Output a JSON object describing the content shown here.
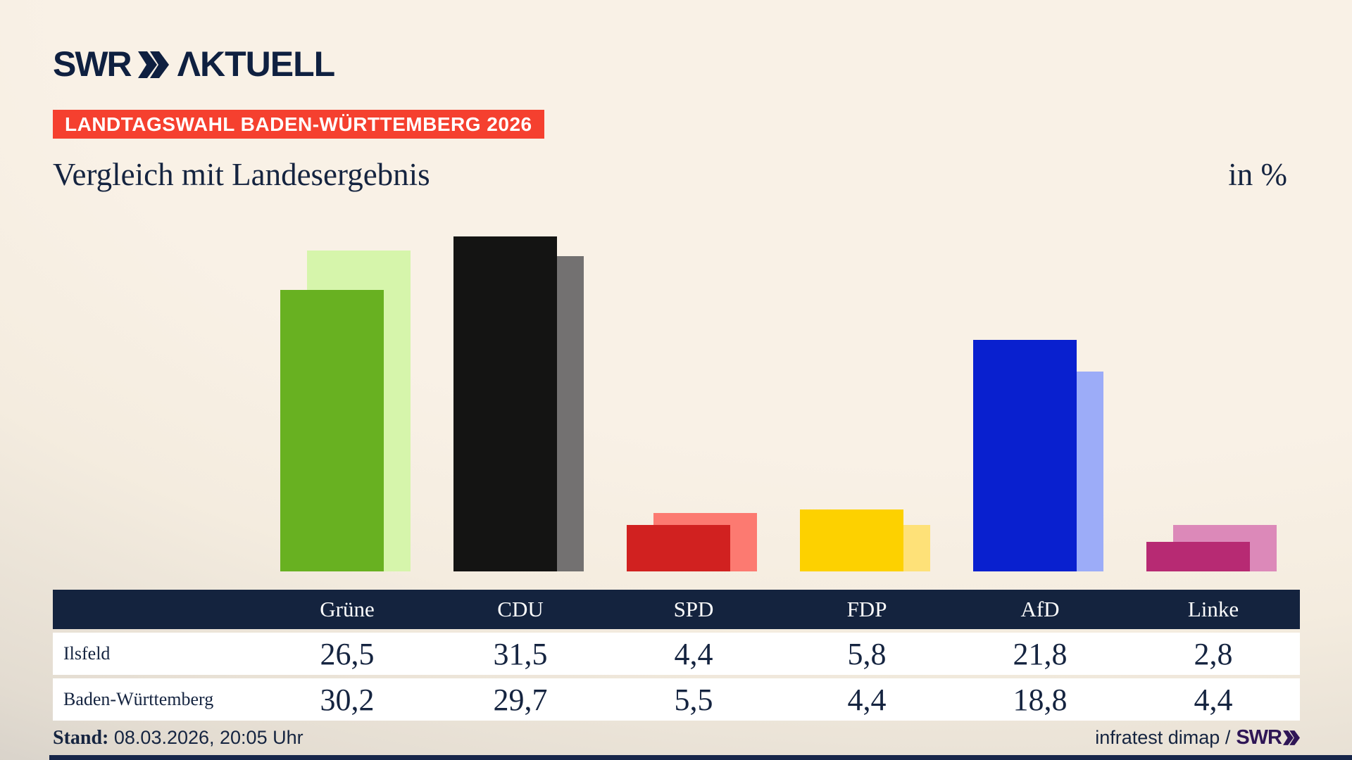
{
  "brand": {
    "logo_swr": "SWR",
    "logo_suffix": "ΛKTUELL"
  },
  "badge": "LANDTAGSWAHL BADEN-WÜRTTEMBERG 2026",
  "title": "Vergleich mit Landesergebnis",
  "unit_label": "in %",
  "chart_data": {
    "type": "bar",
    "title": "Vergleich mit Landesergebnis",
    "unit": "in %",
    "categories": [
      "Grüne",
      "CDU",
      "SPD",
      "FDP",
      "AfD",
      "Linke"
    ],
    "series": [
      {
        "name": "Ilsfeld",
        "values": [
          26.5,
          31.5,
          4.4,
          5.8,
          21.8,
          2.8
        ]
      },
      {
        "name": "Baden-Württemberg",
        "values": [
          30.2,
          29.7,
          5.5,
          4.4,
          18.8,
          4.4
        ]
      }
    ],
    "ylim": [
      0,
      32
    ],
    "grid": false,
    "legend_position": "table-rows",
    "colors": [
      {
        "party": "Grüne",
        "front": "#68b121",
        "back": "#d6f5ab"
      },
      {
        "party": "CDU",
        "front": "#141413",
        "back": "#737171"
      },
      {
        "party": "SPD",
        "front": "#d12120",
        "back": "#fc7a71"
      },
      {
        "party": "FDP",
        "front": "#fdd100",
        "back": "#fee178"
      },
      {
        "party": "AfD",
        "front": "#0920cf",
        "back": "#9cacf8"
      },
      {
        "party": "Linke",
        "front": "#b72a73",
        "back": "#dc89b9"
      }
    ]
  },
  "footer": {
    "stand_label": "Stand:",
    "stand_value": "08.03.2026, 20:05 Uhr",
    "source_text": "infratest dimap /",
    "source_logo": "SWR"
  }
}
